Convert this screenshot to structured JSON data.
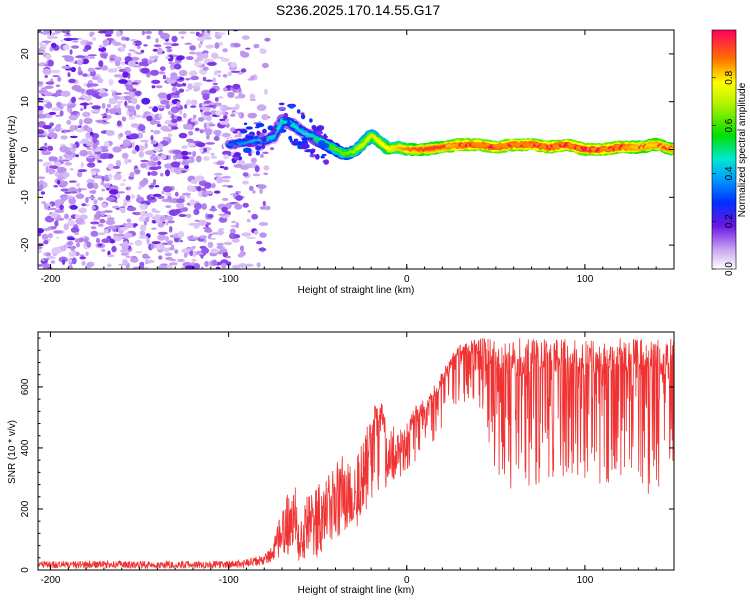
{
  "title": "S236.2025.170.14.55.G17",
  "chart_data": [
    {
      "type": "heatmap",
      "title": "S236.2025.170.14.55.G17",
      "xlabel": "Height of straight line (km)",
      "ylabel": "Frequency (Hz)",
      "xlim": [
        -207,
        150
      ],
      "ylim": [
        -25,
        25
      ],
      "x_ticks": [
        -200,
        -100,
        0,
        100
      ],
      "y_ticks": [
        -20,
        -10,
        0,
        10,
        20
      ],
      "colorbar": {
        "label": "Normalized spectral amplitude",
        "range": [
          0,
          1
        ],
        "ticks": [
          "0.0",
          "0.2",
          "0.4",
          "0.6",
          "0.8"
        ]
      },
      "noise_region_x": [
        -207,
        -78
      ],
      "ridge": {
        "x": [
          -100,
          -90,
          -80,
          -75,
          -70,
          -65,
          -60,
          -55,
          -50,
          -45,
          -40,
          -35,
          -30,
          -25,
          -20,
          -15,
          -10,
          -5,
          0,
          10,
          20,
          30,
          40,
          50,
          60,
          70,
          80,
          90,
          100,
          110,
          120,
          130,
          140,
          150
        ],
        "freq": [
          1,
          1.5,
          2,
          2.5,
          6,
          5.5,
          4,
          3,
          2,
          1,
          0,
          -1,
          -0.5,
          1,
          3,
          1.5,
          0,
          0.5,
          0,
          0,
          0.5,
          1,
          1,
          0.5,
          1,
          1,
          0.5,
          1,
          0,
          0,
          0.5,
          0.5,
          1,
          0
        ],
        "amplitude": [
          0.3,
          0.35,
          0.4,
          0.4,
          0.45,
          0.45,
          0.4,
          0.45,
          0.5,
          0.55,
          0.6,
          0.6,
          0.65,
          0.7,
          0.7,
          0.75,
          0.75,
          0.8,
          0.85,
          0.9,
          0.9,
          0.95,
          0.95,
          0.95,
          0.95,
          0.95,
          0.95,
          0.95,
          0.95,
          0.95,
          0.95,
          0.9,
          0.9,
          0.9
        ]
      }
    },
    {
      "type": "line",
      "xlabel": "Height of straight line (km)",
      "ylabel": "SNR (10 * v/v)",
      "xlim": [
        -207,
        150
      ],
      "ylim": [
        0,
        780
      ],
      "x_ticks": [
        -200,
        -100,
        0,
        100
      ],
      "y_ticks": [
        0,
        200,
        400,
        600
      ],
      "color": "#f03232",
      "series": [
        {
          "x": [
            -207,
            -180,
            -150,
            -120,
            -100,
            -90,
            -80,
            -75,
            -70,
            -65,
            -60,
            -55,
            -50,
            -45,
            -40,
            -35,
            -30,
            -25,
            -20,
            -15,
            -10,
            -5,
            0,
            5,
            10,
            15,
            20,
            25,
            30,
            40,
            50,
            60,
            70,
            80,
            90,
            100,
            110,
            120,
            130,
            140,
            150
          ],
          "upper": [
            30,
            30,
            30,
            30,
            30,
            35,
            50,
            90,
            200,
            300,
            250,
            260,
            280,
            300,
            350,
            400,
            380,
            420,
            520,
            570,
            450,
            500,
            480,
            540,
            560,
            600,
            660,
            700,
            740,
            760,
            760,
            760,
            760,
            760,
            760,
            760,
            760,
            760,
            760,
            760,
            760
          ],
          "lower": [
            5,
            5,
            5,
            5,
            5,
            8,
            15,
            25,
            40,
            50,
            20,
            40,
            30,
            80,
            100,
            100,
            120,
            150,
            200,
            250,
            280,
            300,
            320,
            350,
            400,
            420,
            450,
            500,
            550,
            550,
            300,
            250,
            250,
            300,
            280,
            250,
            280,
            300,
            250,
            250,
            300
          ]
        }
      ]
    }
  ]
}
